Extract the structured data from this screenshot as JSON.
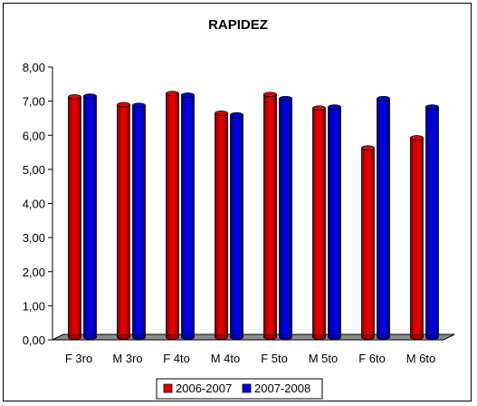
{
  "chart_data": {
    "type": "bar",
    "title": "RAPIDEZ",
    "xlabel": "",
    "ylabel": "",
    "categories": [
      "F 3ro",
      "M 3ro",
      "F 4to",
      "M 4to",
      "F 5to",
      "M 5to",
      "F 6to",
      "M 6to"
    ],
    "series": [
      {
        "name": "2006-2007",
        "color": "#e00000",
        "values": [
          7.1,
          6.87,
          7.2,
          6.62,
          7.17,
          6.77,
          5.6,
          5.9
        ]
      },
      {
        "name": "2007-2008",
        "color": "#0000e0",
        "values": [
          7.12,
          6.85,
          7.15,
          6.57,
          7.05,
          6.8,
          7.05,
          6.8
        ]
      }
    ],
    "ylim": [
      0,
      8
    ],
    "yticks": [
      "0,00",
      "1,00",
      "2,00",
      "3,00",
      "4,00",
      "5,00",
      "6,00",
      "7,00",
      "8,00"
    ],
    "yticks_values": [
      0,
      1,
      2,
      3,
      4,
      5,
      6,
      7,
      8
    ],
    "grid": false,
    "legend_position": "bottom",
    "style": "3d-cylinder"
  }
}
